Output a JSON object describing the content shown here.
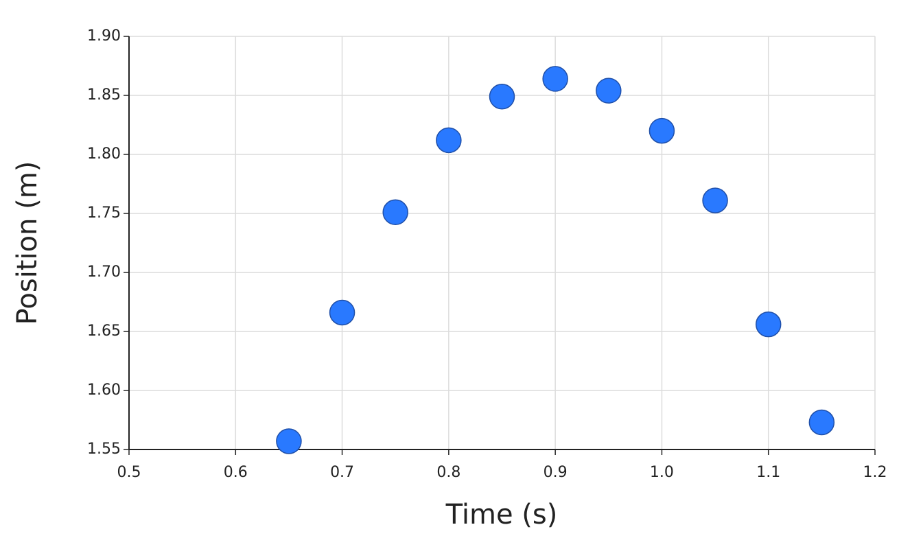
{
  "chart_data": {
    "type": "scatter",
    "xlabel": "Time (s)",
    "ylabel": "Position (m)",
    "x": [
      0.65,
      0.7,
      0.75,
      0.8,
      0.85,
      0.9,
      0.95,
      1.0,
      1.05,
      1.1,
      1.15
    ],
    "values": [
      1.557,
      1.666,
      1.751,
      1.812,
      1.849,
      1.864,
      1.854,
      1.82,
      1.761,
      1.656,
      1.573
    ],
    "color": "#2979ff",
    "xlim": [
      0.5,
      1.2
    ],
    "xticks": [
      0.5,
      0.6,
      0.7,
      0.8,
      0.9,
      {
        "value": 1,
        "label": "1.0"
      },
      1.1,
      1.2
    ],
    "ylim": [
      1.55,
      1.9
    ],
    "yticks": [
      1.55,
      {
        "value": 1.6,
        "label": "1.60"
      },
      1.65,
      {
        "value": 1.7,
        "label": "1.70"
      },
      1.75,
      {
        "value": 1.8,
        "label": "1.80"
      },
      1.85,
      {
        "value": 1.9,
        "label": "1.90"
      }
    ],
    "grid": true
  }
}
